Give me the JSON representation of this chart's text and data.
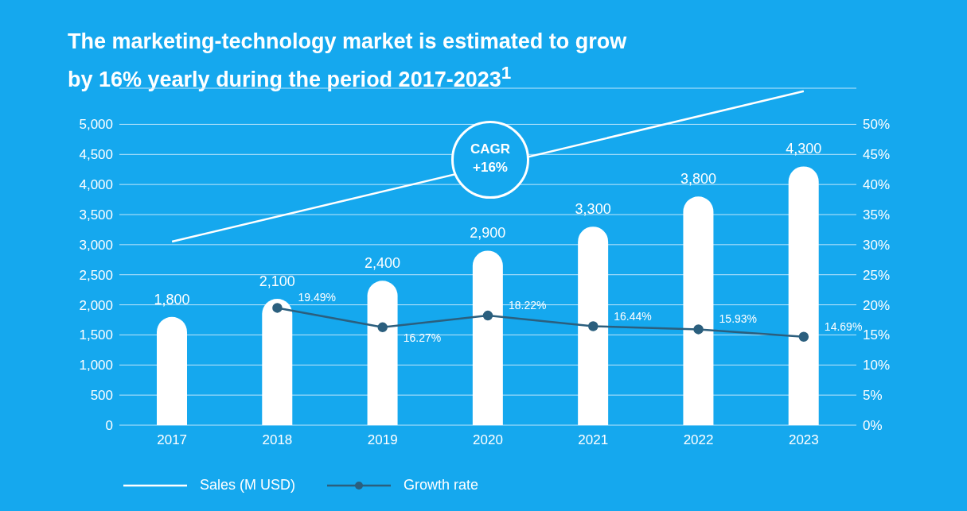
{
  "chart_data": {
    "type": "bar",
    "title": "The marketing-technology market is estimated to grow by 16% yearly during the period 2017-2023$^{1}$",
    "categories": [
      "2017",
      "2018",
      "2019",
      "2020",
      "2021",
      "2022",
      "2023"
    ],
    "series": [
      {
        "name": "Sales (M USD)",
        "color": "#ffffff",
        "values": [
          1800,
          2100,
          2400,
          2900,
          3300,
          3800,
          4300
        ],
        "value_labels": [
          "1,800",
          "2,100",
          "2,400",
          "2,900",
          "3,300",
          "3,800",
          "4,300"
        ]
      },
      {
        "name": "Growth rate",
        "type": "line",
        "axis": "y2",
        "color": "#2b5f7e",
        "marker": "circle",
        "values": [
          null,
          19.49,
          16.27,
          18.22,
          16.44,
          15.93,
          14.69
        ],
        "value_labels": [
          null,
          "19.49%",
          "16.27%",
          "18.22%",
          "16.44%",
          "15.93%",
          "14.69%"
        ]
      },
      {
        "type": "line",
        "color": "#ffffff",
        "values": [
          3050,
          null,
          null,
          null,
          null,
          null,
          5550
        ]
      }
    ],
    "ylim": [
      0,
      5600
    ],
    "yticks": [
      0,
      500,
      {
        "value": 1000,
        "label": "1,000"
      },
      {
        "value": 1500,
        "label": "1,500"
      },
      {
        "value": 2000,
        "label": "2,000"
      },
      {
        "value": 2500,
        "label": "2,500"
      },
      {
        "value": 3000,
        "label": "3,000"
      },
      {
        "value": 3500,
        "label": "3,500"
      },
      {
        "value": 4000,
        "label": "4,000"
      },
      {
        "value": 4500,
        "label": "4,500"
      },
      {
        "value": 5000,
        "label": "5,000"
      }
    ],
    "y2lim": [
      0,
      56
    ],
    "y2ticks": [
      {
        "value": 0,
        "label": "0%"
      },
      {
        "value": 5,
        "label": "5%"
      },
      {
        "value": 10,
        "label": "10%"
      },
      {
        "value": 15,
        "label": "15%"
      },
      {
        "value": 20,
        "label": "20%"
      },
      {
        "value": 25,
        "label": "25%"
      },
      {
        "value": 30,
        "label": "30%"
      },
      {
        "value": 35,
        "label": "35%"
      },
      {
        "value": 40,
        "label": "40%"
      },
      {
        "value": 45,
        "label": "45%"
      },
      {
        "value": 50,
        "label": "50%"
      }
    ],
    "grid": "y",
    "legend": "bottom left",
    "annotations": [
      "CAGR +16%"
    ]
  }
}
